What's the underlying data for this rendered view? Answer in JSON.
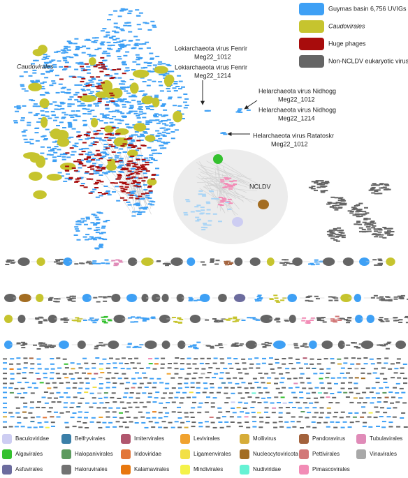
{
  "legend_top": [
    {
      "label": "Guymas basin 6,756 UVIGs",
      "color": "#3ea0f5"
    },
    {
      "label": "Caudovirales",
      "color": "#c6c42e"
    },
    {
      "label": "Huge phages",
      "color": "#a80c0c"
    },
    {
      "label": "Non-NCLDV eukaryotic virus",
      "color": "#656565"
    }
  ],
  "annotations": [
    {
      "lines": [
        "Caudovirales"
      ]
    },
    {
      "lines": [
        "Lokiarchaeota virus Fenrir",
        "Meg22_1012"
      ]
    },
    {
      "lines": [
        "Lokiarchaeota virus Fenrir",
        "Meg22_1214"
      ]
    },
    {
      "lines": [
        "Helarchaeota virus Nidhogg",
        "Meg22_1012"
      ]
    },
    {
      "lines": [
        "Helarchaeota virus Nidhogg",
        "Meg22_1214"
      ]
    },
    {
      "lines": [
        "Helarchaeota virus Ratatoskr",
        "Meg22_1012"
      ]
    },
    {
      "lines": [
        "NCLDV"
      ]
    }
  ],
  "legend_bottom": [
    {
      "label": "Baculoviridae",
      "color": "#cdcdf2"
    },
    {
      "label": "Belfryvirales",
      "color": "#3b7fa8"
    },
    {
      "label": "Imitervirales",
      "color": "#b0566e"
    },
    {
      "label": "Levivirales",
      "color": "#f0a22e"
    },
    {
      "label": "Mollivirus",
      "color": "#d6ac38"
    },
    {
      "label": "Pandoravirus",
      "color": "#a3623c"
    },
    {
      "label": "Tubulavirales",
      "color": "#e08bb8"
    },
    {
      "label": "Algavirales",
      "color": "#35c12f"
    },
    {
      "label": "Halopanivirales",
      "color": "#5c9a5e"
    },
    {
      "label": "Iridoviridae",
      "color": "#e2763a"
    },
    {
      "label": "Ligamenvirales",
      "color": "#f2e046"
    },
    {
      "label": "Nucleocytoviricota",
      "color": "#a36d22"
    },
    {
      "label": "Pettivirales",
      "color": "#d27878"
    },
    {
      "label": "Vinavirales",
      "color": "#a8a8a8"
    },
    {
      "label": "Asfuvirales",
      "color": "#6c6c9e"
    },
    {
      "label": "Haloruvirales",
      "color": "#727272"
    },
    {
      "label": "Kalamavirales",
      "color": "#e8780e"
    },
    {
      "label": "Mindivirales",
      "color": "#f4f24a"
    },
    {
      "label": "Nudiviridae",
      "color": "#66f2d4"
    },
    {
      "label": "Pimascovirales",
      "color": "#f28cb6"
    }
  ]
}
